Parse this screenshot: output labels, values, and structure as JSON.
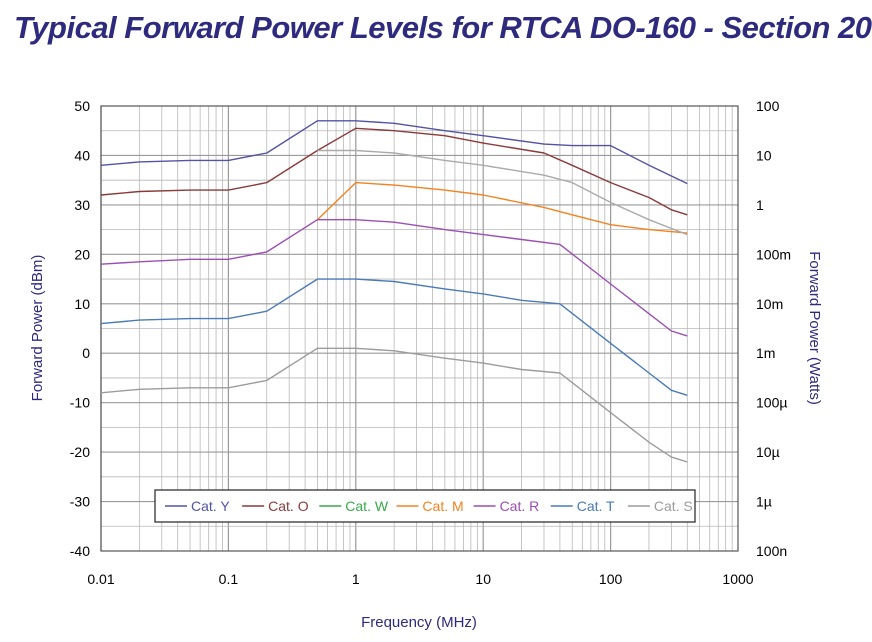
{
  "chart_data": {
    "type": "line",
    "title": "Typical Forward Power Levels for RTCA DO-160 - Section 20",
    "xlabel": "Frequency (MHz)",
    "ylabel": "Forward Power (dBm)",
    "y2label": "Forward Power (Watts)",
    "xscale": "log",
    "xlim": [
      0.01,
      1000
    ],
    "ylim": [
      -40,
      50
    ],
    "x_ticks": [
      "0.01",
      "0.1",
      "1",
      "10",
      "100",
      "1000"
    ],
    "y_ticks": [
      "50",
      "40",
      "30",
      "20",
      "10",
      "0",
      "-10",
      "-20",
      "-30",
      "-40"
    ],
    "y2_ticks": [
      "100",
      "10",
      "1",
      "100m",
      "10m",
      "1m",
      "100µ",
      "10µ",
      "1µ",
      "100n"
    ],
    "grid": true,
    "legend_position": "bottom-center",
    "series": [
      {
        "name": "Cat. Y",
        "color": "#5254a3",
        "x": [
          0.01,
          0.02,
          0.05,
          0.1,
          0.2,
          0.5,
          1,
          2,
          5,
          10,
          30,
          50,
          70,
          100,
          200,
          400
        ],
        "y": [
          38,
          38.7,
          39,
          39,
          40.5,
          47,
          47,
          46.5,
          45,
          44,
          42.3,
          42,
          42,
          42,
          38,
          34.3
        ]
      },
      {
        "name": "Cat. O",
        "color": "#8b3a3a",
        "x": [
          0.01,
          0.02,
          0.05,
          0.1,
          0.2,
          0.5,
          1,
          2,
          5,
          10,
          30,
          50,
          100,
          200,
          300,
          400
        ],
        "y": [
          32,
          32.7,
          33,
          33,
          34.5,
          41,
          45.5,
          45,
          44,
          42.5,
          40.5,
          38,
          34.5,
          31.5,
          29,
          28
        ]
      },
      {
        "name": "Cat. W",
        "color": "#3aa84a",
        "x": [
          0.01,
          1,
          2
        ],
        "y": [
          null,
          null,
          null
        ]
      },
      {
        "name": "Cat. M",
        "color": "#f58220",
        "x": [
          0.01,
          0.2,
          0.5,
          1,
          2,
          5,
          10,
          30,
          50,
          100,
          200,
          400
        ],
        "y": [
          null,
          null,
          27,
          34.5,
          34,
          33,
          32,
          29.5,
          28,
          26,
          25,
          24.3
        ]
      },
      {
        "name": "Cat. R",
        "color": "#9b4fb5",
        "x": [
          0.01,
          0.02,
          0.05,
          0.1,
          0.2,
          0.5,
          1,
          2,
          5,
          10,
          20,
          40,
          100,
          200,
          300,
          400
        ],
        "y": [
          18,
          18.5,
          19,
          19,
          20.5,
          27,
          27,
          26.5,
          25,
          24,
          23,
          22,
          14,
          8,
          4.5,
          3.5
        ]
      },
      {
        "name": "Cat. T",
        "color": "#4a7bb8",
        "x": [
          0.01,
          0.02,
          0.05,
          0.1,
          0.2,
          0.5,
          1,
          2,
          5,
          10,
          20,
          40,
          100,
          200,
          300,
          400
        ],
        "y": [
          6,
          6.7,
          7,
          7,
          8.5,
          15,
          15,
          14.5,
          13,
          12,
          10.7,
          10,
          2,
          -4,
          -7.5,
          -8.5
        ]
      },
      {
        "name": "Cat. S",
        "color": "#9c9c9c",
        "x": [
          0.01,
          0.02,
          0.05,
          0.1,
          0.2,
          0.5,
          1,
          2,
          5,
          10,
          20,
          40,
          100,
          200,
          300,
          400
        ],
        "y": [
          -8,
          -7.3,
          -7,
          -7,
          -5.5,
          1,
          1,
          0.5,
          -1,
          -2,
          -3.3,
          -4,
          -12,
          -18,
          -21,
          -22
        ]
      },
      {
        "name": "",
        "color": "#aaaaaa",
        "x": [
          0.5,
          1,
          2,
          5,
          10,
          30,
          50,
          100,
          200,
          400
        ],
        "y": [
          41,
          41,
          40.5,
          39,
          38,
          36,
          34.5,
          30.5,
          27,
          24
        ]
      }
    ]
  }
}
